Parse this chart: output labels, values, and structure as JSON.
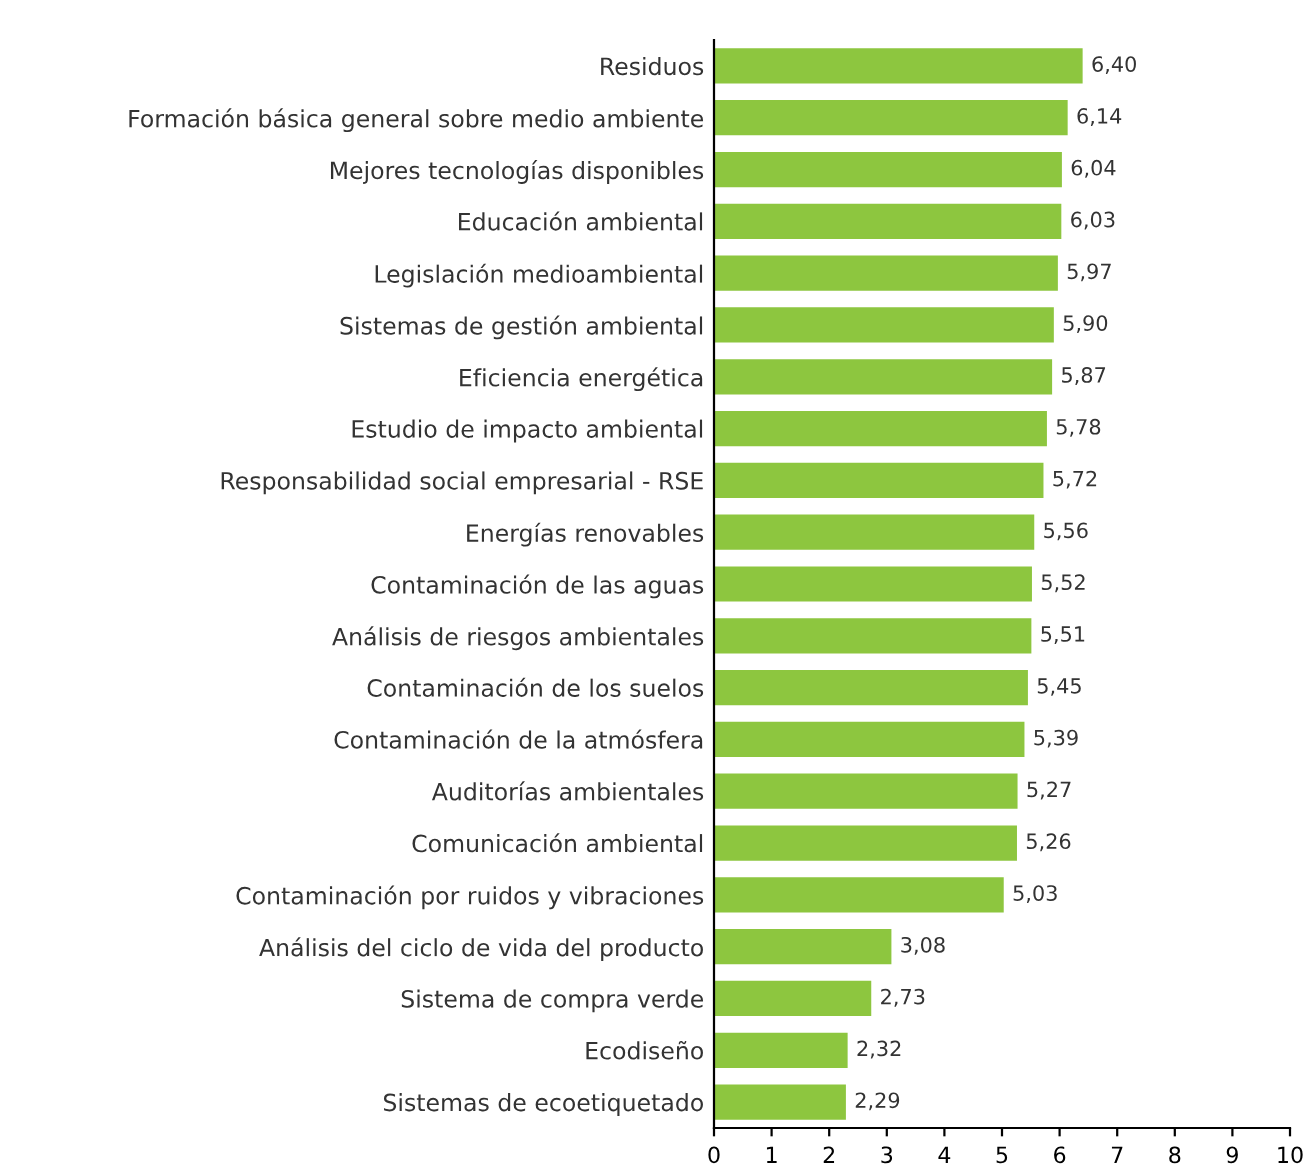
{
  "chart_data": {
    "type": "bar",
    "orientation": "horizontal",
    "categories": [
      "Residuos",
      "Formación básica general sobre medio ambiente",
      "Mejores tecnologías disponibles",
      "Educación ambiental",
      "Legislación medioambiental",
      "Sistemas de gestión ambiental",
      "Eficiencia energética",
      "Estudio de impacto ambiental",
      "Responsabilidad social empresarial - RSE",
      "Energías renovables",
      "Contaminación de las aguas",
      "Análisis de riesgos ambientales",
      "Contaminación de los suelos",
      "Contaminación de la atmósfera",
      "Auditorías ambientales",
      "Comunicación ambiental",
      "Contaminación por ruidos y vibraciones",
      "Análisis del ciclo de vida del producto",
      "Sistema de compra verde",
      "Ecodiseño",
      "Sistemas de ecoetiquetado"
    ],
    "values": [
      6.4,
      6.14,
      6.04,
      6.03,
      5.97,
      5.9,
      5.87,
      5.78,
      5.72,
      5.56,
      5.52,
      5.51,
      5.45,
      5.39,
      5.27,
      5.26,
      5.03,
      3.08,
      2.73,
      2.32,
      2.29
    ],
    "value_labels": [
      "6,40",
      "6,14",
      "6,04",
      "6,03",
      "5,97",
      "5,90",
      "5,87",
      "5,78",
      "5,72",
      "5,56",
      "5,52",
      "5,51",
      "5,45",
      "5,39",
      "5,27",
      "5,26",
      "5,03",
      "3,08",
      "2,73",
      "2,32",
      "2,29"
    ],
    "color": "#8dc63f",
    "xlim": [
      0,
      10
    ],
    "xticks": [
      0,
      1,
      2,
      3,
      4,
      5,
      6,
      7,
      8,
      9,
      10
    ],
    "grid": false,
    "legend": false
  }
}
